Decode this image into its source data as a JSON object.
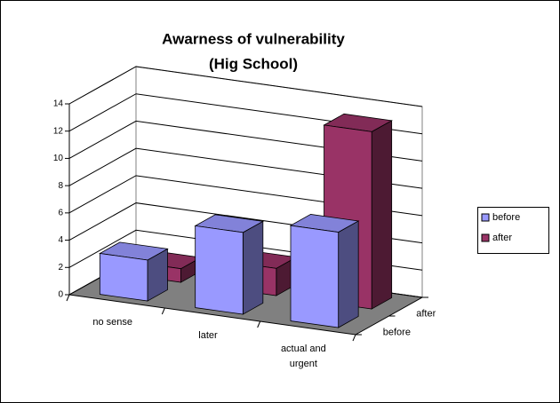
{
  "chart_data": {
    "type": "bar3d",
    "title": "Awarness of vulnerability",
    "subtitle": "(Hig School)",
    "categories": [
      "no sense",
      "later",
      "actual and urgent"
    ],
    "series": [
      {
        "name": "before",
        "color": "#9999ff",
        "values": [
          3,
          6,
          7
        ]
      },
      {
        "name": "after",
        "color": "#993366",
        "values": [
          1,
          2,
          13
        ]
      }
    ],
    "ylim": [
      0,
      14
    ],
    "yticks": [
      0,
      2,
      4,
      6,
      8,
      10,
      12,
      14
    ],
    "grid": true,
    "legend": "right"
  }
}
